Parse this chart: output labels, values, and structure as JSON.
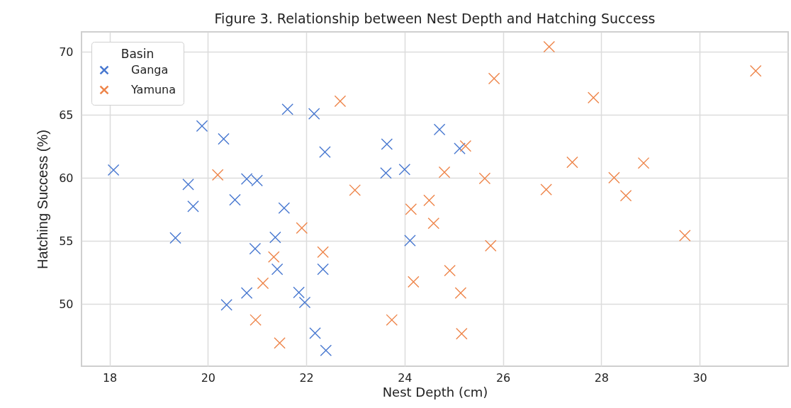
{
  "chart_data": {
    "type": "scatter",
    "title": "Figure 3. Relationship between Nest Depth and Hatching Success",
    "xlabel": "Nest Depth (cm)",
    "ylabel": "Hatching Success (%)",
    "legend_title": "Basin",
    "legend": "top left",
    "grid": true,
    "marker": "cross",
    "xlim": [
      17.43,
      31.8
    ],
    "ylim": [
      45.07,
      71.6
    ],
    "xticks": [
      18,
      20,
      22,
      24,
      26,
      28,
      30
    ],
    "yticks": [
      50,
      55,
      60,
      65,
      70
    ],
    "series": [
      {
        "name": "Ganga",
        "color": "#4878d0",
        "x": [
          21.62,
          22.16,
          19.88,
          20.32,
          22.38,
          18.08,
          20.79,
          21.0,
          19.6,
          20.55,
          19.7,
          21.55,
          19.34,
          21.37,
          20.96,
          21.41,
          22.34,
          20.79,
          21.85,
          21.97,
          20.38,
          22.18,
          22.4,
          23.64,
          24.71,
          25.12,
          23.62,
          24.0,
          24.11
        ],
        "values": [
          65.46,
          65.1,
          64.13,
          63.11,
          62.07,
          60.64,
          59.93,
          59.8,
          59.49,
          58.27,
          57.75,
          57.62,
          55.25,
          55.29,
          54.39,
          52.76,
          52.76,
          50.88,
          50.92,
          50.13,
          49.94,
          47.69,
          46.32,
          62.69,
          63.85,
          62.35,
          60.4,
          60.68,
          55.04
        ]
      },
      {
        "name": "Yamuna",
        "color": "#ee854a",
        "x": [
          20.2,
          21.91,
          22.34,
          21.34,
          21.12,
          20.97,
          21.46,
          22.69,
          25.24,
          25.82,
          24.81,
          25.63,
          26.88,
          22.99,
          24.5,
          24.13,
          24.59,
          25.75,
          24.92,
          24.18,
          25.14,
          23.74,
          25.16,
          26.94,
          31.14,
          27.84,
          27.41,
          28.86,
          28.26,
          28.5,
          29.7
        ],
        "values": [
          60.25,
          56.04,
          54.13,
          53.74,
          51.65,
          48.74,
          46.91,
          66.1,
          62.54,
          67.9,
          60.46,
          59.97,
          59.09,
          59.04,
          58.23,
          57.53,
          56.41,
          54.63,
          52.66,
          51.77,
          50.88,
          48.74,
          47.65,
          70.42,
          68.5,
          66.38,
          61.25,
          61.19,
          60.03,
          58.6,
          55.43
        ]
      }
    ]
  }
}
